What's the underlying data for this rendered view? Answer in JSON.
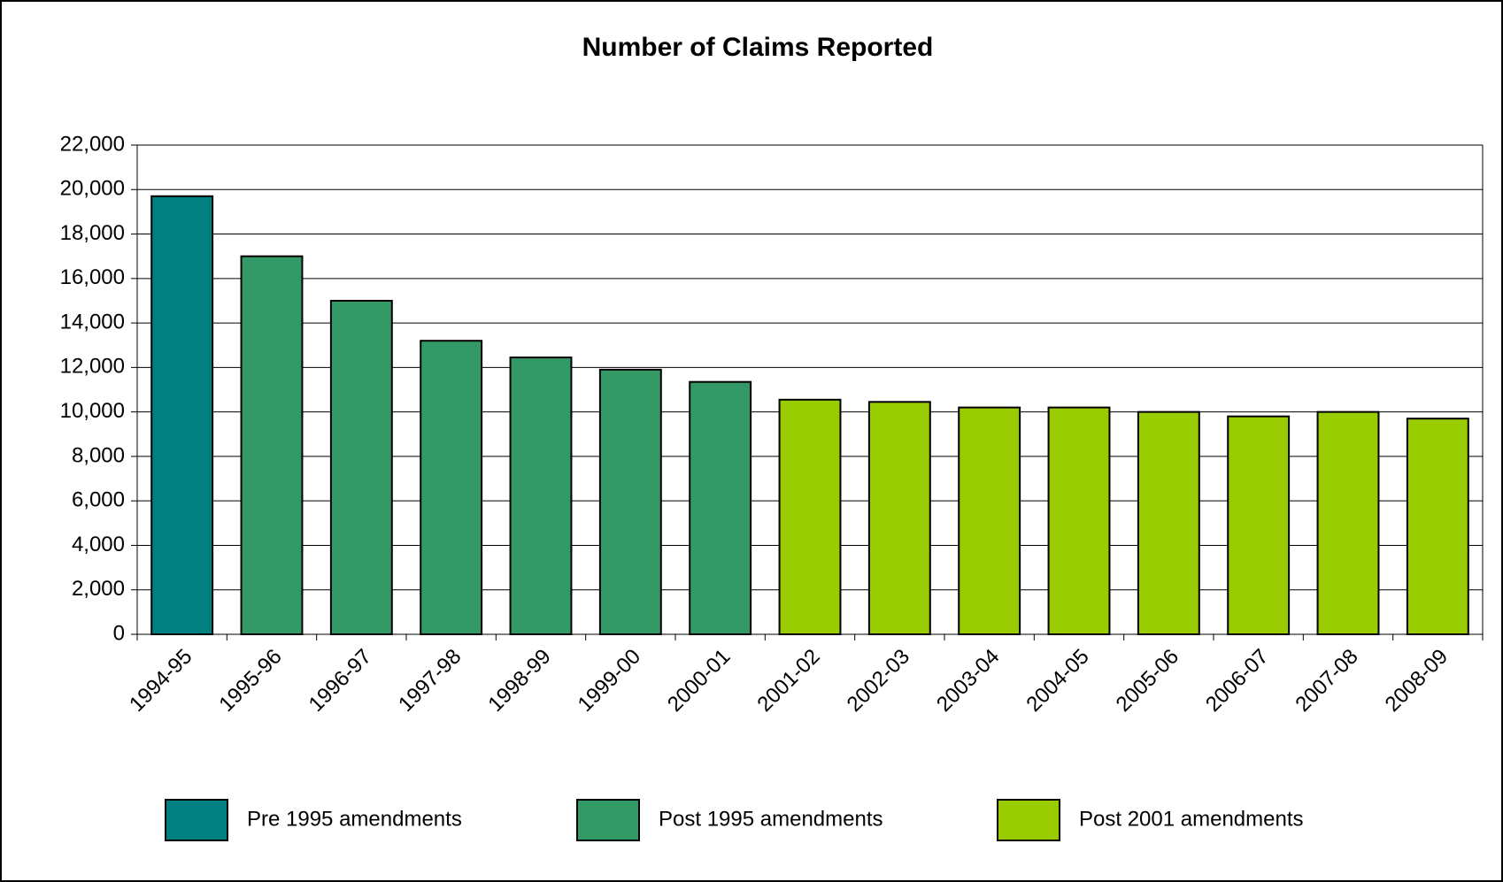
{
  "chart_data": {
    "type": "bar",
    "title": "Number of Claims Reported",
    "categories": [
      "1994-95",
      "1995-96",
      "1996-97",
      "1997-98",
      "1998-99",
      "1999-00",
      "2000-01",
      "2001-02",
      "2002-03",
      "2003-04",
      "2004-05",
      "2005-06",
      "2006-07",
      "2007-08",
      "2008-09"
    ],
    "series": [
      {
        "name": "Pre 1995 amendments",
        "color": "#008080",
        "values": [
          19700,
          null,
          null,
          null,
          null,
          null,
          null,
          null,
          null,
          null,
          null,
          null,
          null,
          null,
          null
        ]
      },
      {
        "name": "Post 1995 amendments",
        "color": "#339966",
        "values": [
          null,
          17000,
          15000,
          13200,
          12450,
          11900,
          11350,
          null,
          null,
          null,
          null,
          null,
          null,
          null,
          null
        ]
      },
      {
        "name": "Post 2001 amendments",
        "color": "#99cc00",
        "values": [
          null,
          null,
          null,
          null,
          null,
          null,
          null,
          10550,
          10450,
          10200,
          10200,
          10000,
          9800,
          10000,
          9700
        ]
      }
    ],
    "ylim": [
      0,
      22000
    ],
    "yticks": [
      0,
      {
        "value": 2000,
        "label": "2,000"
      },
      {
        "value": 4000,
        "label": "4,000"
      },
      {
        "value": 6000,
        "label": "6,000"
      },
      {
        "value": 8000,
        "label": "8,000"
      },
      {
        "value": 10000,
        "label": "10,000"
      },
      {
        "value": 12000,
        "label": "12,000"
      },
      {
        "value": 14000,
        "label": "14,000"
      },
      {
        "value": 16000,
        "label": "16,000"
      },
      {
        "value": 18000,
        "label": "18,000"
      },
      {
        "value": 20000,
        "label": "20,000"
      },
      {
        "value": 22000,
        "label": "22,000"
      }
    ],
    "grid": true,
    "legend": "bottom"
  }
}
